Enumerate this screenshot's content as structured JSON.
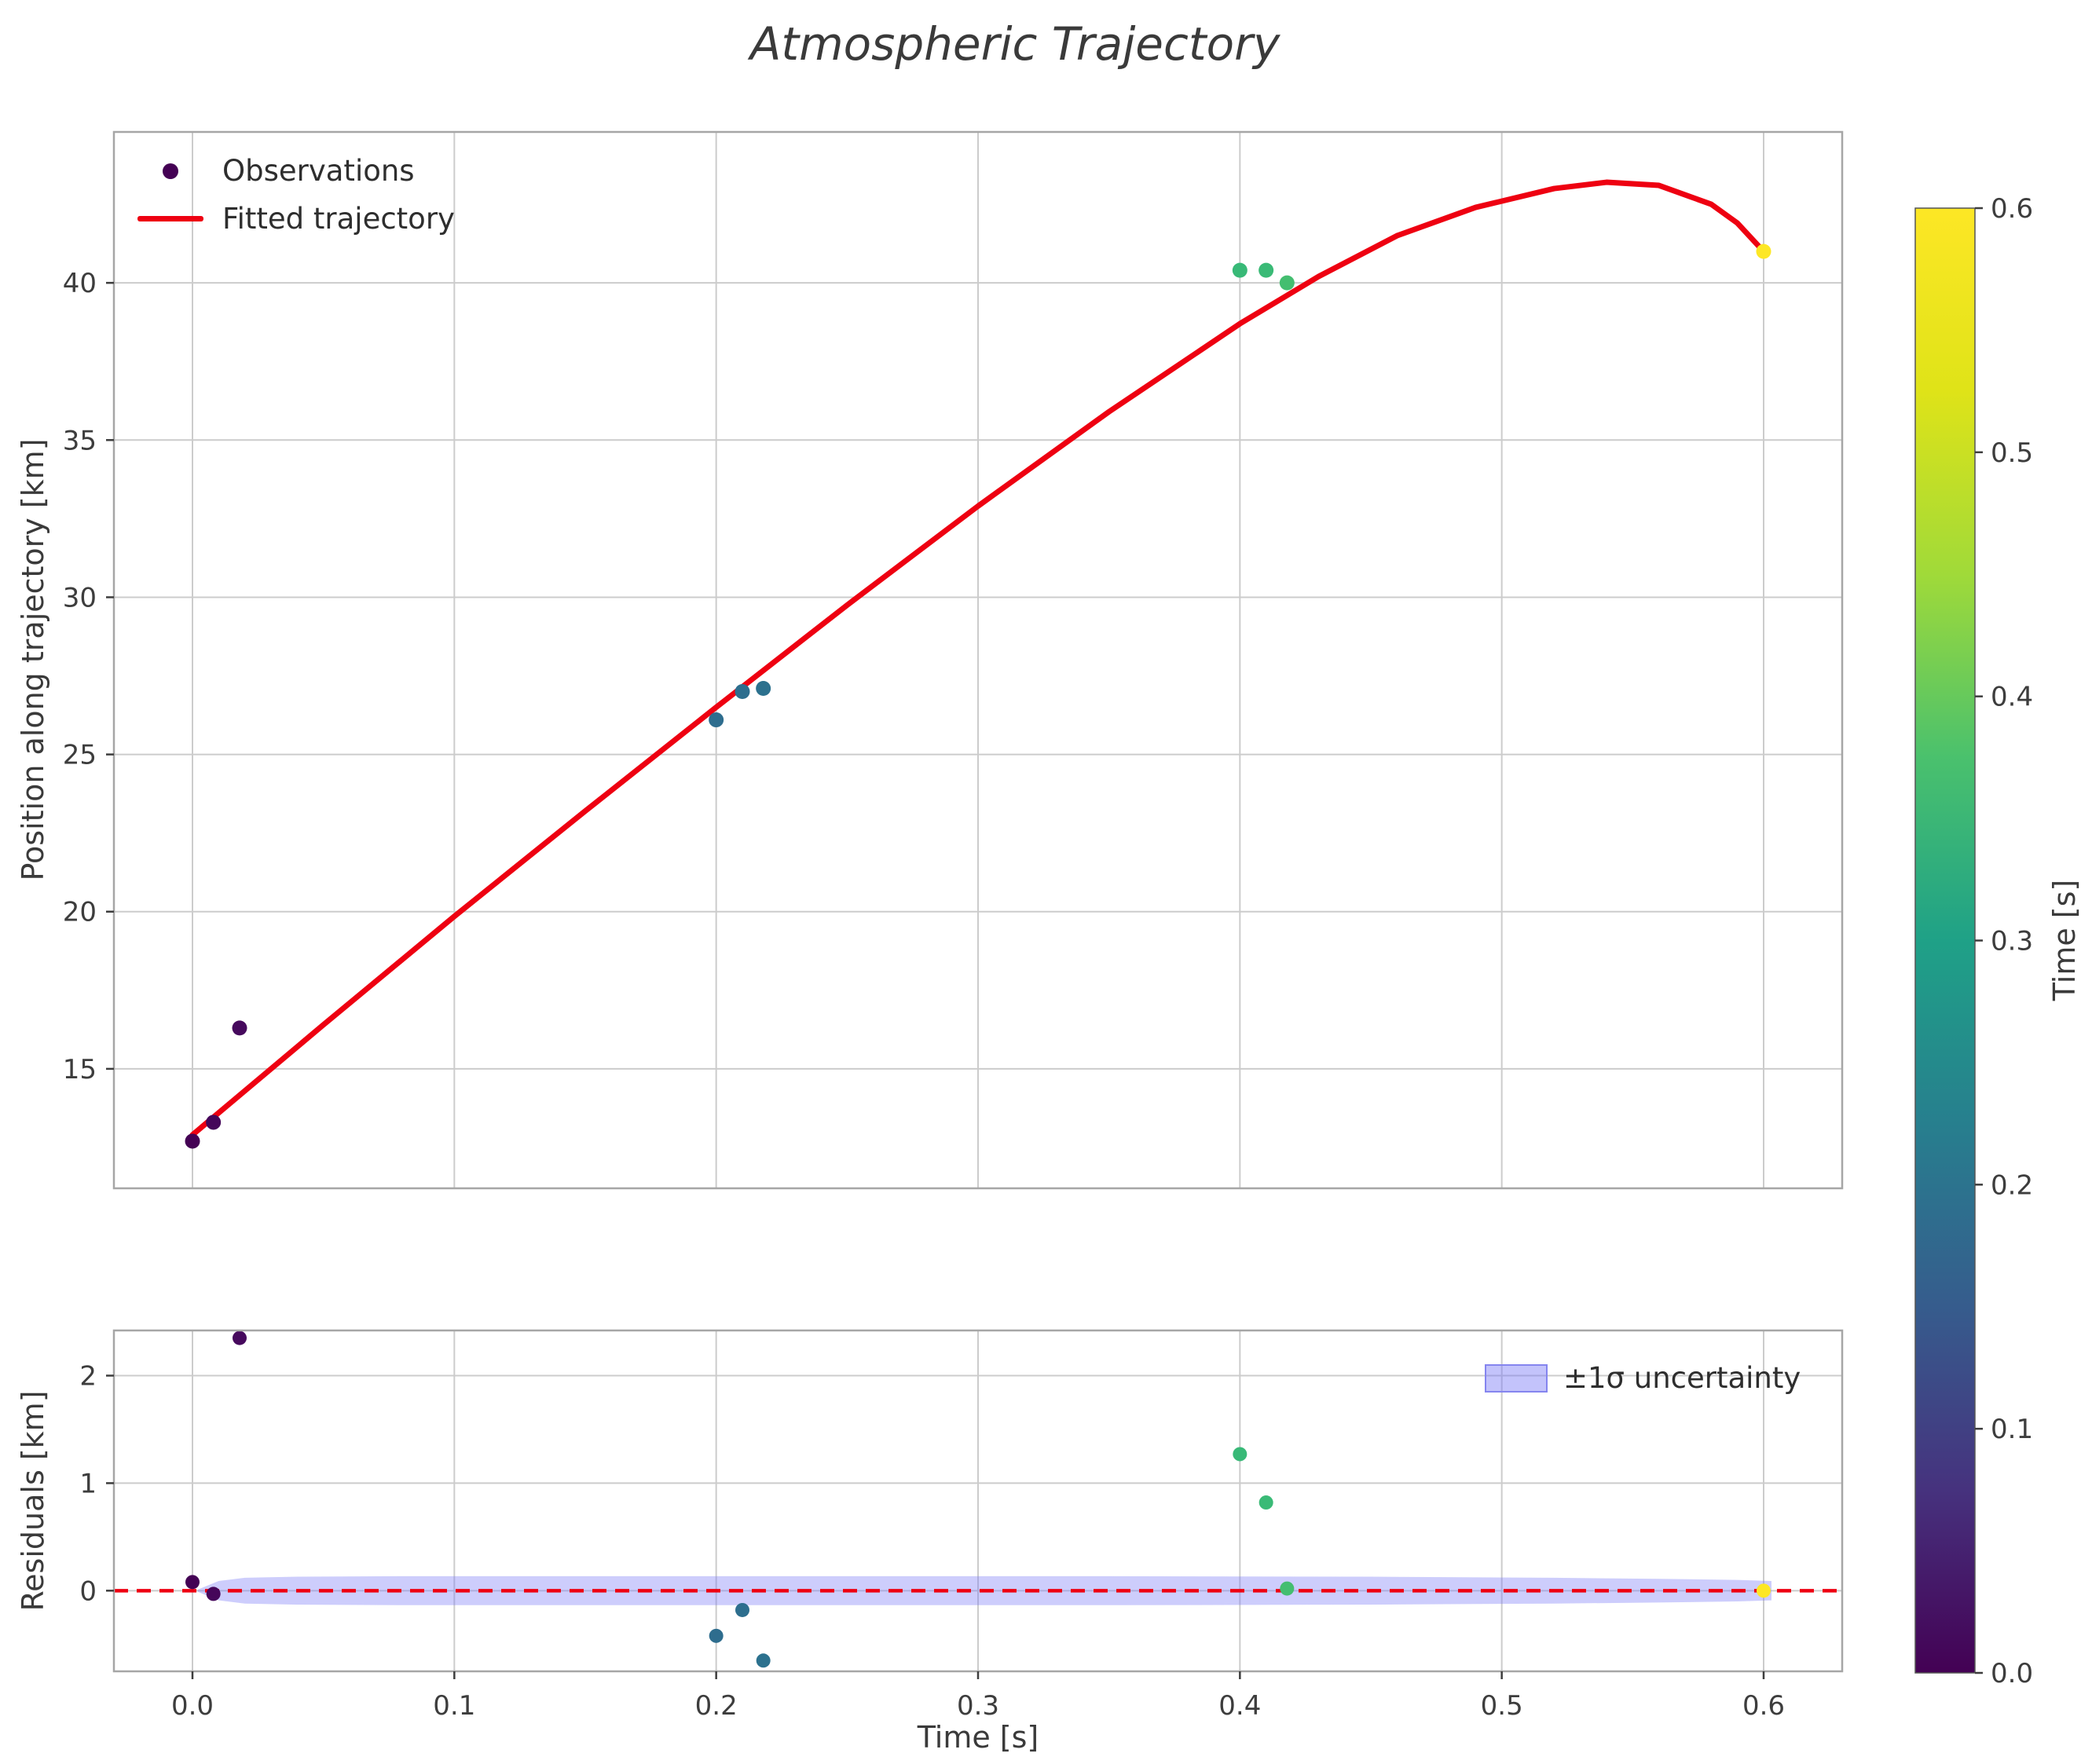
{
  "title": "Atmospheric Trajectory",
  "top_plot": {
    "ylabel": "Position along trajectory [km]",
    "legend": {
      "observations": "Observations",
      "fitted": "Fitted trajectory"
    }
  },
  "bottom_plot": {
    "ylabel": "Residuals [km]",
    "xlabel": "Time [s]",
    "legend": {
      "band": "±1σ uncertainty"
    }
  },
  "colorbar": {
    "label": "Time [s]",
    "vmin": 0.0,
    "vmax": 0.6,
    "tick_values": [
      0.0,
      0.1,
      0.2,
      0.3,
      0.4,
      0.5,
      0.6
    ],
    "tick_labels": [
      "0.0",
      "0.1",
      "0.2",
      "0.3",
      "0.4",
      "0.5",
      "0.6"
    ],
    "gradient": [
      "#440154",
      "#46327e",
      "#365c8d",
      "#277f8e",
      "#1fa187",
      "#4ac16d",
      "#a0da39",
      "#dfe318",
      "#fde725"
    ]
  },
  "chart_data": [
    {
      "type": "scatter",
      "title": "Atmospheric Trajectory",
      "ylabel": "Position along trajectory [km]",
      "xlim": [
        -0.03,
        0.63
      ],
      "ylim": [
        11.2,
        44.8
      ],
      "yticks": [
        15,
        20,
        25,
        30,
        35,
        40
      ],
      "ytick_labels": [
        "15",
        "20",
        "25",
        "30",
        "35",
        "40"
      ],
      "xgrid": [
        0.0,
        0.1,
        0.2,
        0.3,
        0.4,
        0.5,
        0.6
      ],
      "grid": true,
      "legend_position": "upper left",
      "series": [
        {
          "name": "Observations",
          "type": "scatter",
          "colormap": "viridis",
          "color_by": "Time [s]",
          "x": [
            0.0,
            0.008,
            0.018,
            0.2,
            0.21,
            0.218,
            0.4,
            0.41,
            0.418,
            0.6
          ],
          "y": [
            12.7,
            13.3,
            16.3,
            26.1,
            27.0,
            27.1,
            40.4,
            40.4,
            40.0,
            41.0
          ],
          "colors": [
            "#440154",
            "#45065a",
            "#46095d",
            "#2e6d8e",
            "#2d6e8e",
            "#2c718e",
            "#38b977",
            "#3aba76",
            "#44be70",
            "#fde725"
          ]
        },
        {
          "name": "Fitted trajectory",
          "type": "line",
          "color": "#ee0011",
          "x": [
            0.0,
            0.05,
            0.1,
            0.15,
            0.2,
            0.25,
            0.3,
            0.35,
            0.4,
            0.43,
            0.46,
            0.49,
            0.52,
            0.54,
            0.56,
            0.58,
            0.59,
            0.6
          ],
          "y": [
            12.9,
            16.4,
            19.85,
            23.2,
            26.5,
            29.75,
            32.9,
            35.9,
            38.7,
            40.2,
            41.5,
            42.4,
            43.0,
            43.2,
            43.1,
            42.5,
            41.9,
            41.0
          ]
        }
      ]
    },
    {
      "type": "scatter",
      "ylabel": "Residuals [km]",
      "xlabel": "Time [s]",
      "xlim": [
        -0.03,
        0.63
      ],
      "ylim": [
        -0.75,
        2.42
      ],
      "yticks": [
        0,
        1,
        2
      ],
      "ytick_labels": [
        "0",
        "1",
        "2"
      ],
      "xticks": [
        0.0,
        0.1,
        0.2,
        0.3,
        0.4,
        0.5,
        0.6
      ],
      "xtick_labels": [
        "0.0",
        "0.1",
        "0.2",
        "0.3",
        "0.4",
        "0.5",
        "0.6"
      ],
      "grid": true,
      "zero_line": {
        "y": 0,
        "color": "#ee0011",
        "dashed": true
      },
      "band": {
        "label": "±1σ uncertainty",
        "fill": "#7b7bf7",
        "opacity": 0.38,
        "x": [
          0.002,
          0.01,
          0.02,
          0.04,
          0.08,
          0.15,
          0.25,
          0.35,
          0.45,
          0.52,
          0.56,
          0.59,
          0.603
        ],
        "upper": [
          0.01,
          0.09,
          0.12,
          0.13,
          0.135,
          0.135,
          0.135,
          0.135,
          0.13,
          0.12,
          0.11,
          0.1,
          0.09
        ],
        "lower": [
          -0.01,
          -0.09,
          -0.12,
          -0.13,
          -0.135,
          -0.135,
          -0.135,
          -0.135,
          -0.13,
          -0.12,
          -0.11,
          -0.1,
          -0.09
        ]
      },
      "series": [
        {
          "name": "Residuals",
          "type": "scatter",
          "x": [
            0.0,
            0.008,
            0.018,
            0.2,
            0.21,
            0.218,
            0.4,
            0.41,
            0.418,
            0.6
          ],
          "y": [
            0.08,
            -0.03,
            2.35,
            -0.42,
            -0.18,
            -0.65,
            1.27,
            0.82,
            0.02,
            0.0
          ],
          "colors": [
            "#440154",
            "#45065a",
            "#46095d",
            "#2e6d8e",
            "#2d6e8e",
            "#2c718e",
            "#38b977",
            "#3aba76",
            "#44be70",
            "#fde725"
          ]
        }
      ]
    }
  ]
}
